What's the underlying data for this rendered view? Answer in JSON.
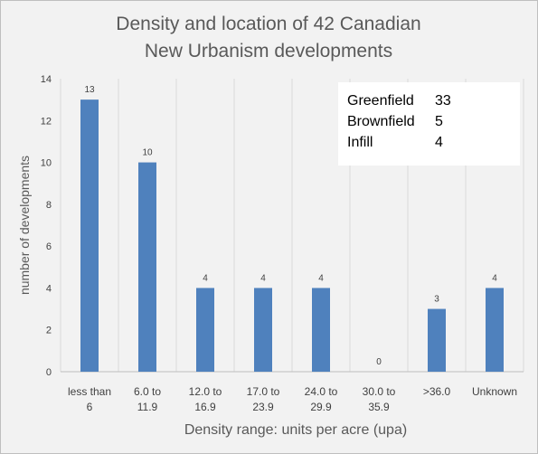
{
  "chart_data": {
    "type": "bar",
    "title_lines": [
      "Density and location of 42 Canadian",
      "New Urbanism developments"
    ],
    "xlabel": "Density range: units per acre (upa)",
    "ylabel": "number of developments",
    "ylim": [
      0,
      14
    ],
    "yticks": [
      0,
      2,
      4,
      6,
      8,
      10,
      12,
      14
    ],
    "grid": "vertical",
    "categories": [
      [
        "less than",
        "6"
      ],
      [
        "6.0 to",
        "11.9"
      ],
      [
        "12.0 to",
        "16.9"
      ],
      [
        "17.0 to",
        "23.9"
      ],
      [
        "24.0 to",
        "29.9"
      ],
      [
        "30.0 to",
        "35.9"
      ],
      [
        ">36.0"
      ],
      [
        "Unknown"
      ]
    ],
    "values": [
      13,
      10,
      4,
      4,
      4,
      0,
      3,
      4
    ],
    "bar_color": "#4f81bd",
    "annotation_box": {
      "position": "top-right",
      "rows": [
        {
          "label": "Greenfield",
          "value": "33"
        },
        {
          "label": "Brownfield",
          "value": "5"
        },
        {
          "label": "Infill",
          "value": "4"
        }
      ]
    }
  }
}
